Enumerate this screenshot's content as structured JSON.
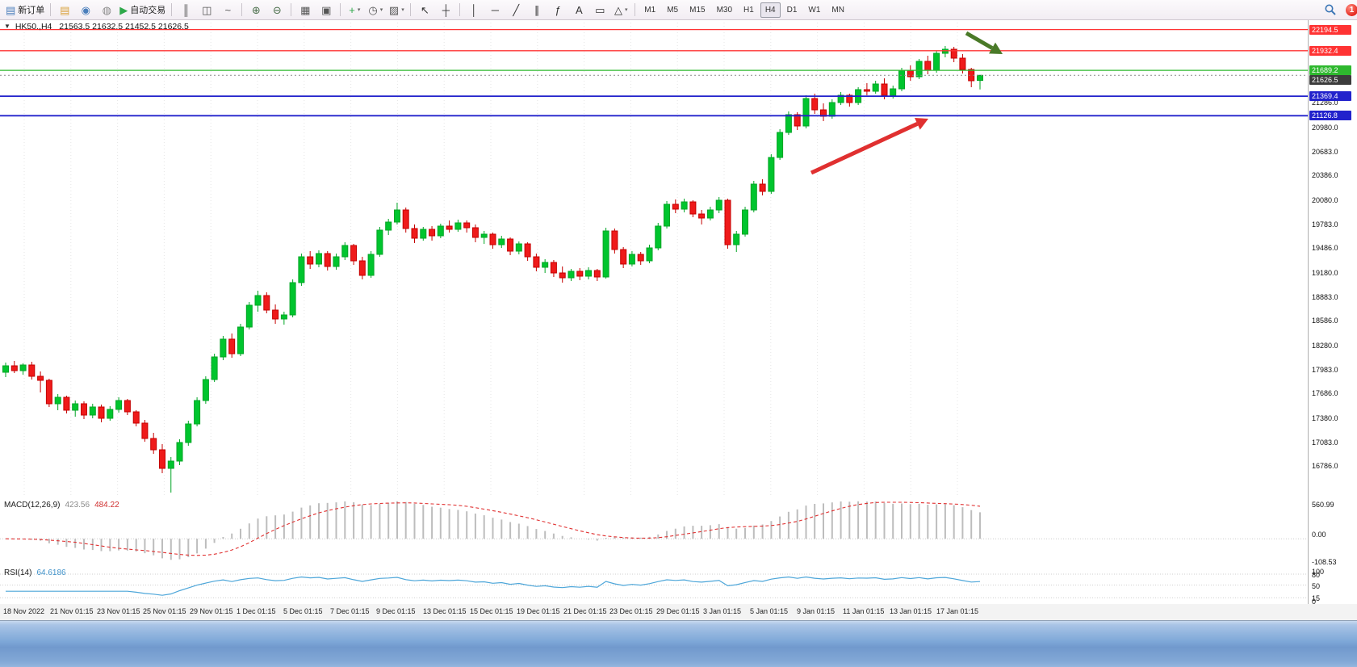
{
  "toolbar": {
    "notification_count": "1",
    "timeframes": [
      "M1",
      "M5",
      "M15",
      "M30",
      "H1",
      "H4",
      "D1",
      "W1",
      "MN"
    ],
    "active_timeframe": "H4",
    "items": [
      {
        "name": "new-order",
        "glyph": "▤",
        "color": "#4a7ebb",
        "label": "新订单"
      },
      {
        "sep": true
      },
      {
        "name": "market-watch",
        "glyph": "▤",
        "color": "#d9a23c"
      },
      {
        "name": "navigator",
        "glyph": "◉",
        "color": "#4a7ebb"
      },
      {
        "name": "web-terminal",
        "glyph": "◍",
        "color": "#8a8a8a"
      },
      {
        "name": "autotrading",
        "glyph": "▶",
        "color": "#2ea84a",
        "label": "自动交易"
      },
      {
        "sep": true
      },
      {
        "name": "bar-chart",
        "glyph": "║",
        "color": "#555555"
      },
      {
        "name": "candle-chart",
        "glyph": "◫",
        "color": "#555555"
      },
      {
        "name": "line-chart",
        "glyph": "~",
        "color": "#555555"
      },
      {
        "sep": true
      },
      {
        "name": "zoom-in",
        "glyph": "⊕",
        "color": "#4c6f4c"
      },
      {
        "name": "zoom-out",
        "glyph": "⊖",
        "color": "#4c6f4c"
      },
      {
        "sep": true
      },
      {
        "name": "tile-windows",
        "glyph": "▦",
        "color": "#555555"
      },
      {
        "name": "auto-arrange",
        "glyph": "▣",
        "color": "#555555"
      },
      {
        "sep": true
      },
      {
        "name": "indicators",
        "glyph": "+",
        "color": "#2ea84a",
        "caret": true
      },
      {
        "name": "periods",
        "glyph": "◷",
        "color": "#555555",
        "caret": true
      },
      {
        "name": "templates",
        "glyph": "▨",
        "color": "#555555",
        "caret": true
      },
      {
        "sep": true
      },
      {
        "name": "cursor",
        "glyph": "↖",
        "color": "#333333"
      },
      {
        "name": "crosshair",
        "glyph": "┼",
        "color": "#333333"
      },
      {
        "sep": true
      },
      {
        "name": "vertical-line",
        "glyph": "│",
        "color": "#333333"
      },
      {
        "name": "horizontal-line",
        "glyph": "─",
        "color": "#333333"
      },
      {
        "name": "trendline",
        "glyph": "╱",
        "color": "#333333"
      },
      {
        "name": "equidistant-channel",
        "glyph": "∥",
        "color": "#333333"
      },
      {
        "name": "fibonacci",
        "glyph": "ƒ",
        "color": "#333333"
      },
      {
        "name": "text",
        "glyph": "A",
        "color": "#333333"
      },
      {
        "name": "text-label",
        "glyph": "▭",
        "color": "#333333"
      },
      {
        "name": "shapes",
        "glyph": "△",
        "color": "#333333",
        "caret": true
      },
      {
        "sep": true
      }
    ]
  },
  "chart": {
    "dropdown_glyph": "▼",
    "symbol_period": "HK50.,H4",
    "ohlc_text": "21563.5 21632.5 21452.5 21626.5"
  },
  "macd_panel": {
    "label": "MACD(12,26,9)",
    "value_main": "423.56",
    "value_signal": "484.22",
    "scale_top": "560.99",
    "scale_zero": "0.00",
    "scale_bottom": "-108.53"
  },
  "rsi_panel": {
    "label": "RSI(14)",
    "value": "64.6186",
    "scale_labels": [
      "100",
      "80",
      "50",
      "15",
      "0"
    ]
  },
  "chart_data": {
    "type": "candlestick",
    "symbol": "HK50.",
    "timeframe": "H4",
    "last_candle": {
      "open": 21563.5,
      "high": 21632.5,
      "low": 21452.5,
      "close": 21626.5
    },
    "y_axis": {
      "min": 16400,
      "max": 22320,
      "tick_labels": [
        "21286.0",
        "20980.0",
        "20683.0",
        "20386.0",
        "20080.0",
        "19783.0",
        "19486.0",
        "19180.0",
        "18883.0",
        "18586.0",
        "18280.0",
        "17983.0",
        "17686.0",
        "17380.0",
        "17083.0",
        "16786.0"
      ]
    },
    "hlines": [
      {
        "price": 22194.5,
        "label": "22194.5",
        "color": "#ff3333",
        "width": 1.3
      },
      {
        "price": 21932.4,
        "label": "21932.4",
        "color": "#ff3333",
        "width": 1.3
      },
      {
        "price": 21689.2,
        "label": "21689.2",
        "color": "#2eb82e",
        "width": 1.3
      },
      {
        "price": 21369.4,
        "label": "21369.4",
        "color": "#2222cc",
        "width": 1.8
      },
      {
        "price": 21126.8,
        "label": "21126.8",
        "color": "#2222cc",
        "width": 1.8
      }
    ],
    "current_price": 21626.5,
    "current_price_label": "21626.5",
    "candles": [
      [
        17950,
        18070,
        17890,
        18030
      ],
      [
        18030,
        18090,
        17940,
        17970
      ],
      [
        17970,
        18060,
        17920,
        18040
      ],
      [
        18040,
        18080,
        17860,
        17900
      ],
      [
        17900,
        17960,
        17700,
        17850
      ],
      [
        17850,
        17870,
        17520,
        17560
      ],
      [
        17560,
        17680,
        17480,
        17640
      ],
      [
        17640,
        17660,
        17440,
        17480
      ],
      [
        17480,
        17600,
        17400,
        17560
      ],
      [
        17560,
        17590,
        17370,
        17420
      ],
      [
        17420,
        17560,
        17380,
        17520
      ],
      [
        17520,
        17550,
        17330,
        17380
      ],
      [
        17380,
        17530,
        17350,
        17490
      ],
      [
        17490,
        17640,
        17450,
        17600
      ],
      [
        17600,
        17620,
        17420,
        17460
      ],
      [
        17460,
        17480,
        17280,
        17320
      ],
      [
        17320,
        17360,
        17090,
        17130
      ],
      [
        17130,
        17200,
        16940,
        16990
      ],
      [
        16990,
        17060,
        16700,
        16760
      ],
      [
        16760,
        16900,
        16460,
        16850
      ],
      [
        16850,
        17120,
        16800,
        17080
      ],
      [
        17080,
        17350,
        17040,
        17310
      ],
      [
        17310,
        17640,
        17280,
        17600
      ],
      [
        17600,
        17900,
        17560,
        17860
      ],
      [
        17860,
        18180,
        17830,
        18140
      ],
      [
        18140,
        18400,
        18100,
        18360
      ],
      [
        18360,
        18430,
        18130,
        18180
      ],
      [
        18180,
        18550,
        18150,
        18510
      ],
      [
        18510,
        18820,
        18480,
        18780
      ],
      [
        18780,
        18960,
        18700,
        18900
      ],
      [
        18900,
        18940,
        18680,
        18720
      ],
      [
        18720,
        18790,
        18550,
        18610
      ],
      [
        18610,
        18700,
        18540,
        18660
      ],
      [
        18660,
        19100,
        18630,
        19060
      ],
      [
        19060,
        19420,
        19020,
        19380
      ],
      [
        19380,
        19450,
        19230,
        19290
      ],
      [
        19290,
        19460,
        19250,
        19420
      ],
      [
        19420,
        19450,
        19210,
        19260
      ],
      [
        19260,
        19420,
        19220,
        19380
      ],
      [
        19380,
        19560,
        19340,
        19520
      ],
      [
        19520,
        19540,
        19280,
        19330
      ],
      [
        19330,
        19380,
        19100,
        19150
      ],
      [
        19150,
        19450,
        19120,
        19410
      ],
      [
        19410,
        19750,
        19380,
        19710
      ],
      [
        19710,
        19850,
        19650,
        19810
      ],
      [
        19810,
        20050,
        19780,
        19960
      ],
      [
        19960,
        19990,
        19680,
        19730
      ],
      [
        19730,
        19780,
        19550,
        19610
      ],
      [
        19610,
        19750,
        19580,
        19720
      ],
      [
        19720,
        19760,
        19580,
        19640
      ],
      [
        19640,
        19790,
        19610,
        19760
      ],
      [
        19760,
        19830,
        19680,
        19720
      ],
      [
        19720,
        19840,
        19690,
        19800
      ],
      [
        19800,
        19830,
        19680,
        19740
      ],
      [
        19740,
        19780,
        19560,
        19620
      ],
      [
        19620,
        19700,
        19540,
        19660
      ],
      [
        19660,
        19680,
        19480,
        19530
      ],
      [
        19530,
        19640,
        19490,
        19600
      ],
      [
        19600,
        19620,
        19400,
        19450
      ],
      [
        19450,
        19570,
        19410,
        19540
      ],
      [
        19540,
        19560,
        19330,
        19380
      ],
      [
        19380,
        19420,
        19200,
        19250
      ],
      [
        19250,
        19350,
        19180,
        19310
      ],
      [
        19310,
        19340,
        19130,
        19180
      ],
      [
        19180,
        19260,
        19060,
        19120
      ],
      [
        19120,
        19230,
        19080,
        19200
      ],
      [
        19200,
        19240,
        19090,
        19140
      ],
      [
        19140,
        19250,
        19100,
        19210
      ],
      [
        19210,
        19230,
        19080,
        19130
      ],
      [
        19130,
        19740,
        19110,
        19700
      ],
      [
        19700,
        19730,
        19420,
        19470
      ],
      [
        19470,
        19500,
        19240,
        19290
      ],
      [
        19290,
        19450,
        19260,
        19410
      ],
      [
        19410,
        19440,
        19280,
        19330
      ],
      [
        19330,
        19530,
        19300,
        19490
      ],
      [
        19490,
        19800,
        19460,
        19760
      ],
      [
        19760,
        20070,
        19730,
        20030
      ],
      [
        20030,
        20090,
        19920,
        19970
      ],
      [
        19970,
        20100,
        19930,
        20060
      ],
      [
        20060,
        20080,
        19870,
        19910
      ],
      [
        19910,
        19960,
        19780,
        19860
      ],
      [
        19860,
        20000,
        19830,
        19960
      ],
      [
        19960,
        20120,
        19920,
        20080
      ],
      [
        20080,
        20100,
        19480,
        19530
      ],
      [
        19530,
        19700,
        19440,
        19660
      ],
      [
        19660,
        20000,
        19630,
        19960
      ],
      [
        19960,
        20320,
        19930,
        20280
      ],
      [
        20280,
        20340,
        20140,
        20190
      ],
      [
        20190,
        20650,
        20160,
        20610
      ],
      [
        20610,
        20960,
        20580,
        20920
      ],
      [
        20920,
        21180,
        20890,
        21140
      ],
      [
        21140,
        21170,
        20950,
        21000
      ],
      [
        21000,
        21380,
        20970,
        21340
      ],
      [
        21340,
        21400,
        21150,
        21200
      ],
      [
        21200,
        21280,
        21060,
        21120
      ],
      [
        21120,
        21330,
        21090,
        21290
      ],
      [
        21290,
        21420,
        21260,
        21380
      ],
      [
        21380,
        21400,
        21240,
        21290
      ],
      [
        21290,
        21480,
        21260,
        21450
      ],
      [
        21450,
        21530,
        21380,
        21430
      ],
      [
        21430,
        21560,
        21400,
        21520
      ],
      [
        21520,
        21590,
        21330,
        21380
      ],
      [
        21380,
        21500,
        21340,
        21460
      ],
      [
        21460,
        21720,
        21430,
        21690
      ],
      [
        21690,
        21750,
        21560,
        21610
      ],
      [
        21610,
        21830,
        21580,
        21800
      ],
      [
        21800,
        21870,
        21640,
        21690
      ],
      [
        21690,
        21930,
        21660,
        21900
      ],
      [
        21900,
        21990,
        21850,
        21950
      ],
      [
        21950,
        21980,
        21790,
        21840
      ],
      [
        21840,
        21890,
        21650,
        21700
      ],
      [
        21700,
        21720,
        21480,
        21560
      ],
      [
        21563.5,
        21632.5,
        21452.5,
        21626.5
      ]
    ],
    "time_labels": [
      "18 Nov 2022",
      "21 Nov 01:15",
      "23 Nov 01:15",
      "25 Nov 01:15",
      "29 Nov 01:15",
      "1 Dec 01:15",
      "5 Dec 01:15",
      "7 Dec 01:15",
      "9 Dec 01:15",
      "13 Dec 01:15",
      "15 Dec 01:15",
      "19 Dec 01:15",
      "21 Dec 01:15",
      "23 Dec 01:15",
      "29 Dec 01:15",
      "3 Jan 01:15",
      "5 Jan 01:15",
      "9 Jan 01:15",
      "11 Jan 01:15",
      "13 Jan 01:15",
      "17 Jan 01:15"
    ],
    "arrows": [
      {
        "name": "red-trend-arrow",
        "from": [
          1005,
          190
        ],
        "to": [
          1150,
          123
        ],
        "color": "#e03030"
      },
      {
        "name": "green-down-arrow",
        "from": [
          1197,
          17
        ],
        "to": [
          1242,
          43
        ],
        "color": "#4a7a28"
      }
    ],
    "indicators": {
      "macd": {
        "params": [
          12,
          26,
          9
        ],
        "histogram_color": "#bdbdbd",
        "signal_color": "#e03030",
        "scale": {
          "max": 560.99,
          "min": -108.53
        }
      },
      "rsi": {
        "period": 14,
        "color": "#4da6d9",
        "levels": [
          80,
          50,
          15
        ]
      }
    },
    "colors": {
      "up_fill": "#00c52e",
      "up_stroke": "#00a524",
      "down_fill": "#ef1a1a",
      "down_stroke": "#c40000"
    }
  }
}
